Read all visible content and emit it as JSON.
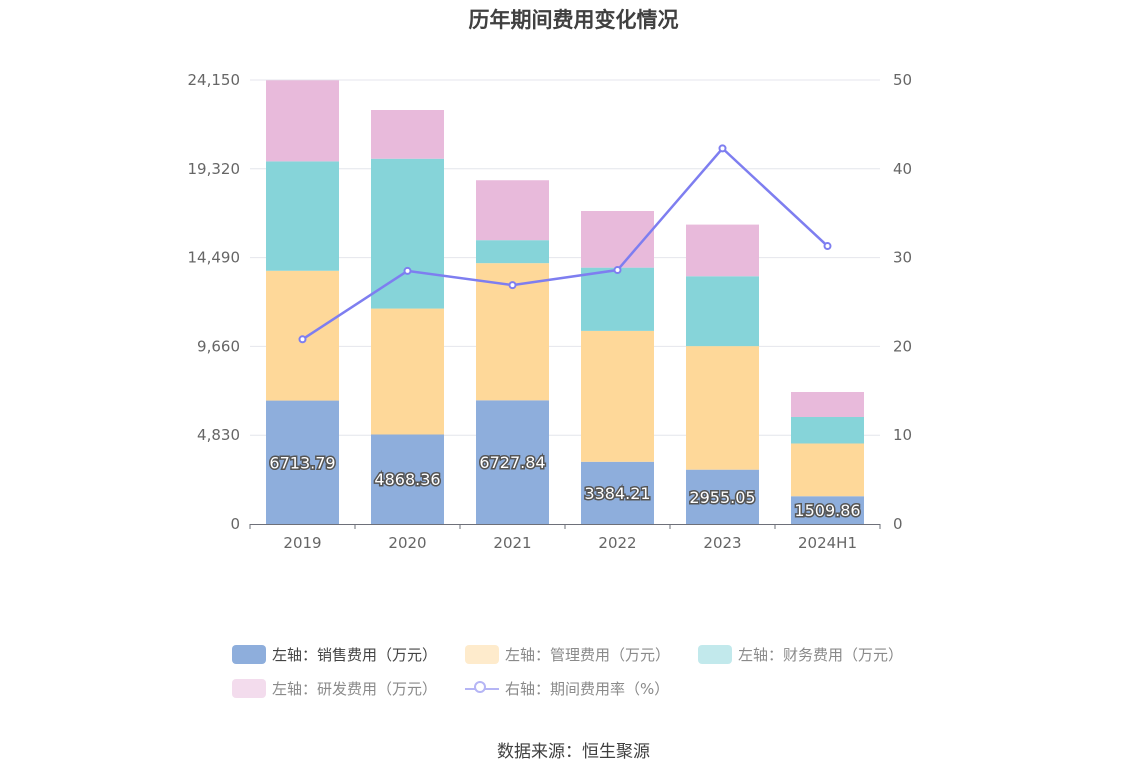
{
  "title": "历年期间费用变化情况",
  "source": "数据来源：恒生聚源",
  "colors": {
    "sales": "#8eaedc",
    "mgmt": "#fed899",
    "finance": "#86d4d9",
    "rd": "#e8badb",
    "rate": "#7e7ef0",
    "rate_dim": "#b5b5f5",
    "axis_text": "#666666",
    "grid": "#e4e6ec",
    "legend_text": "#444444",
    "legend_text_dim": "#8a8a8a"
  },
  "legend": [
    {
      "label": "左轴：销售费用（万元）",
      "swatch": "sales"
    },
    {
      "label": "左轴：管理费用（万元）",
      "swatch": "mgmt"
    },
    {
      "label": "左轴：财务费用（万元）",
      "swatch": "finance"
    },
    {
      "label": "左轴：研发费用（万元）",
      "swatch": "rd"
    },
    {
      "label": "右轴：期间费用率（%）",
      "swatch": "rate"
    }
  ],
  "chart_data": {
    "type": "bar",
    "stacked": true,
    "title": "历年期间费用变化情况",
    "categories": [
      "2019",
      "2020",
      "2021",
      "2022",
      "2023",
      "2024H1"
    ],
    "y_left": {
      "ticks": [
        "0",
        "4,830",
        "9,660",
        "14,490",
        "19,320",
        "24,150"
      ],
      "ylim": [
        0,
        24150
      ]
    },
    "y_right": {
      "ticks": [
        "0",
        "10",
        "20",
        "30",
        "40",
        "50"
      ],
      "ylim": [
        0,
        50
      ]
    },
    "series": [
      {
        "name": "左轴：销售费用（万元）",
        "axis": "left",
        "type": "bar",
        "color_key": "sales",
        "values": [
          6713.79,
          4868.36,
          6727.84,
          3384.21,
          2955.05,
          1509.86
        ],
        "labels": [
          "6713.79",
          "4868.36",
          "6727.84",
          "3384.21",
          "2955.05",
          "1509.86"
        ]
      },
      {
        "name": "左轴：管理费用（万元）",
        "axis": "left",
        "type": "bar",
        "color_key": "mgmt",
        "values": [
          7060,
          6850,
          7460,
          7120,
          6720,
          2870
        ]
      },
      {
        "name": "左轴：财务费用（万元）",
        "axis": "left",
        "type": "bar",
        "color_key": "finance",
        "values": [
          5950,
          8150,
          1250,
          3440,
          3800,
          1440
        ]
      },
      {
        "name": "左轴：研发费用（万元）",
        "axis": "left",
        "type": "bar",
        "color_key": "rd",
        "values": [
          4410,
          2650,
          3260,
          3080,
          2810,
          1360
        ]
      },
      {
        "name": "右轴：期间费用率（%）",
        "axis": "right",
        "type": "line",
        "color_key": "rate",
        "values": [
          20.8,
          28.5,
          26.9,
          28.6,
          42.3,
          31.3
        ]
      }
    ]
  }
}
